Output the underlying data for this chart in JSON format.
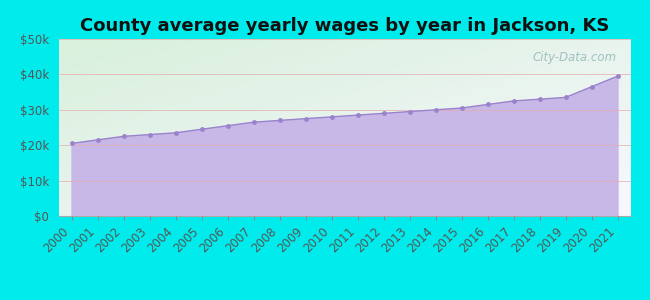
{
  "title": "County average yearly wages by year in Jackson, KS",
  "years": [
    2000,
    2001,
    2002,
    2003,
    2004,
    2005,
    2006,
    2007,
    2008,
    2009,
    2010,
    2011,
    2012,
    2013,
    2014,
    2015,
    2016,
    2017,
    2018,
    2019,
    2020,
    2021
  ],
  "wages": [
    20500,
    21500,
    22500,
    23000,
    23500,
    24500,
    25500,
    26500,
    27000,
    27500,
    28000,
    28500,
    29000,
    29500,
    30000,
    30500,
    31500,
    32500,
    33000,
    33500,
    36500,
    39500
  ],
  "fill_color_top": "#C8B8E8",
  "fill_color_bottom": "#D8CCF0",
  "line_color": "#9B82CC",
  "marker_color": "#9B82CC",
  "background_color": "#00ECEC",
  "plot_bg_topleft": "#D8F0DC",
  "plot_bg_bottomright": "#F8F8FF",
  "ylim": [
    0,
    50000
  ],
  "yticks": [
    0,
    10000,
    20000,
    30000,
    40000,
    50000
  ],
  "ytick_labels": [
    "$0",
    "$10k",
    "$20k",
    "$30k",
    "$40k",
    "$50k"
  ],
  "watermark_text": "City-Data.com",
  "title_fontsize": 13,
  "tick_fontsize": 8.5,
  "label_color": "#555555"
}
